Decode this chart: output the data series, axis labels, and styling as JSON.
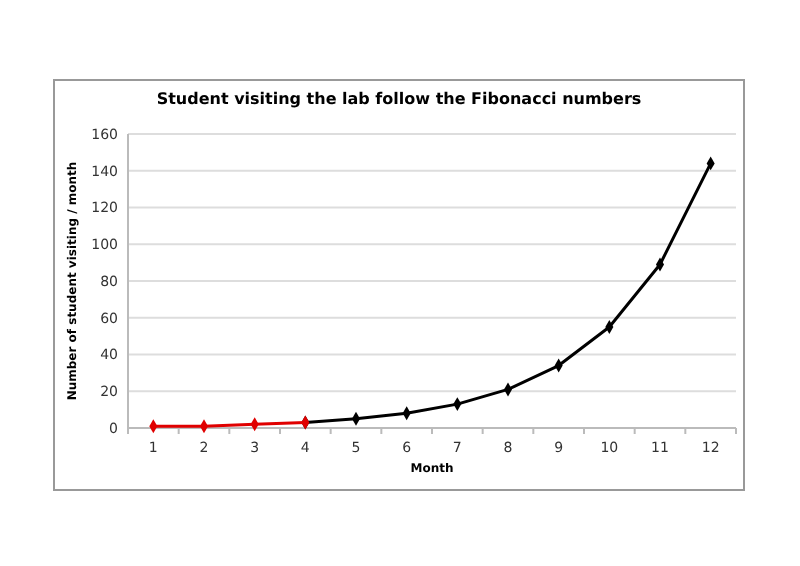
{
  "chart_data": {
    "type": "line",
    "title": "Student visiting the lab follow the Fibonacci numbers",
    "xlabel": "Month",
    "ylabel": "Number of student visiting / month",
    "series": [
      {
        "color": "#000000",
        "x": [
          4,
          5,
          6,
          7,
          8,
          9,
          10,
          11,
          12
        ],
        "values": [
          3,
          5,
          8,
          13,
          21,
          34,
          55,
          89,
          144
        ]
      },
      {
        "color": "#e00000",
        "x": [
          1,
          2,
          3,
          4
        ],
        "values": [
          1,
          1,
          2,
          3
        ]
      }
    ],
    "xlim": [
      0.5,
      12.5
    ],
    "xticks": [
      {
        "value": 0.5,
        "label": null
      },
      1,
      {
        "value": 1.5,
        "label": null
      },
      2,
      {
        "value": 2.5,
        "label": null
      },
      3,
      {
        "value": 3.5,
        "label": null
      },
      4,
      {
        "value": 4.5,
        "label": null
      },
      5,
      {
        "value": 5.5,
        "label": null
      },
      6,
      {
        "value": 6.5,
        "label": null
      },
      7,
      {
        "value": 7.5,
        "label": null
      },
      8,
      {
        "value": 8.5,
        "label": null
      },
      9,
      {
        "value": 9.5,
        "label": null
      },
      10,
      {
        "value": 10.5,
        "label": null
      },
      11,
      {
        "value": 11.5,
        "label": null
      },
      12,
      {
        "value": 12.5,
        "label": null
      }
    ],
    "ylim": [
      0,
      160
    ],
    "yticks": [
      0,
      20,
      40,
      60,
      80,
      100,
      120,
      140,
      160
    ],
    "grid": "y",
    "marker": "diamond",
    "line_style": "solid"
  }
}
